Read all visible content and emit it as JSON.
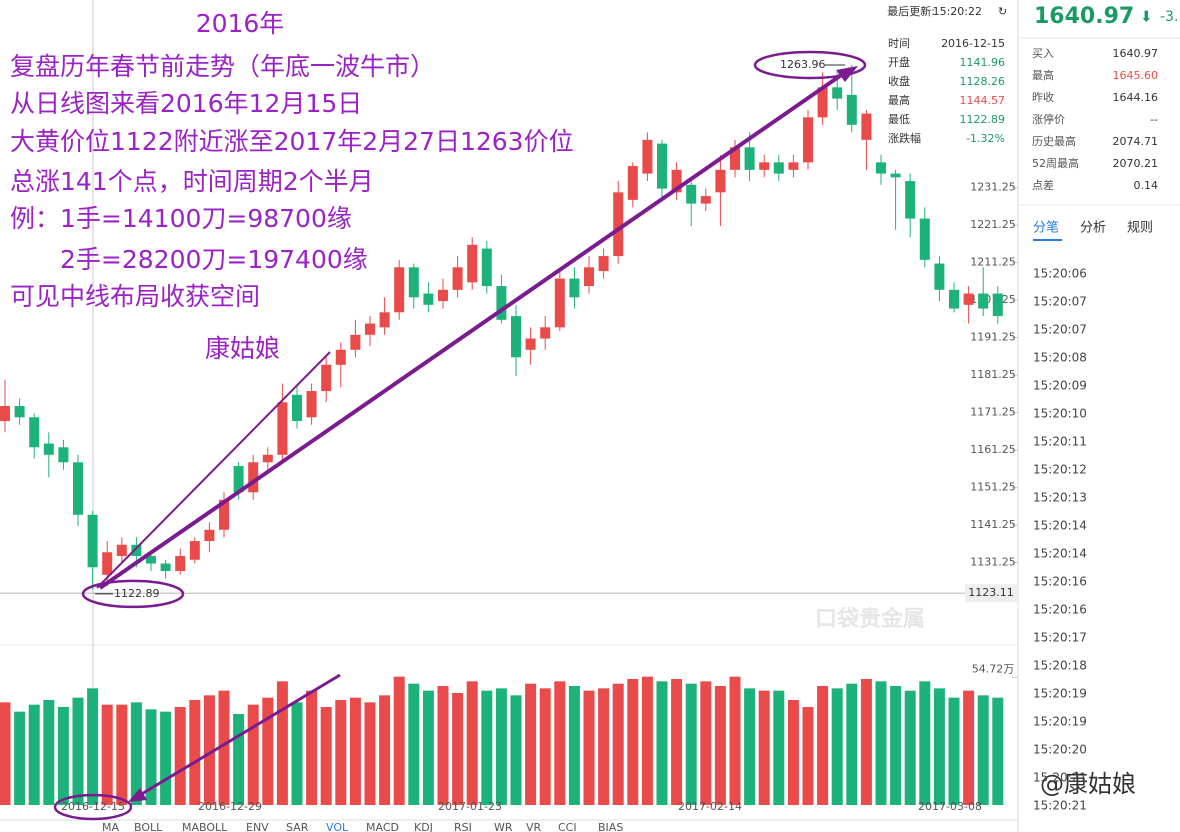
{
  "header": {
    "last_update_label": "最后更新:",
    "last_update": "15:20:22",
    "price": "1640.97",
    "change": "-3."
  },
  "annotation": {
    "lines": [
      "2016年",
      "复盘历年春节前走势（年底一波牛市）",
      "从日线图来看2016年12月15日",
      "大黄价位1122附近涨至2017年2月27日1263价位",
      "总涨141个点，时间周期2个半月",
      "例：1手=14100刀=98700缘",
      "2手=28200刀=197400缘",
      "可见中线布局收获空间",
      "康姑娘"
    ],
    "watermark": "@康姑娘",
    "logo": "口袋贵金属"
  },
  "tooltip": {
    "rows": [
      [
        "时间",
        "2016-12-15"
      ],
      [
        "开盘",
        "1141.96"
      ],
      [
        "收盘",
        "1128.26"
      ],
      [
        "最高",
        "1144.57"
      ],
      [
        "最低",
        "1122.89"
      ],
      [
        "涨跌幅",
        "-1.32%"
      ]
    ]
  },
  "quote_table": {
    "rows": [
      [
        "买入",
        "1640.97"
      ],
      [
        "最高",
        "1645.60"
      ],
      [
        "昨收",
        "1644.16"
      ],
      [
        "涨停价",
        "--"
      ],
      [
        "历史最高",
        "2074.71"
      ],
      [
        "52周最高",
        "2070.21"
      ],
      [
        "点差",
        "0.14"
      ]
    ]
  },
  "tabs": [
    "分笔",
    "分析",
    "规则"
  ],
  "ticks_list": [
    "15:20:06",
    "15:20:07",
    "15:20:07",
    "15:20:08",
    "15:20:09",
    "15:20:10",
    "15:20:11",
    "15:20:12",
    "15:20:13",
    "15:20:14",
    "15:20:14",
    "15:20:16",
    "15:20:16",
    "15:20:17",
    "15:20:18",
    "15:20:19",
    "15:20:19",
    "15:20:20",
    "15:20:21",
    "15:20:21"
  ],
  "indicators": [
    "MA",
    "BOLL",
    "MABOLL",
    "ENV",
    "SAR",
    "VOL",
    "MACD",
    "KDJ",
    "RSI",
    "WR",
    "VR",
    "CCI",
    "BIAS"
  ],
  "chart_data": {
    "type": "candlestick",
    "open": [
      1169,
      1173,
      1170,
      1163,
      1162,
      1158,
      1144,
      1128,
      1133,
      1136,
      1133,
      1131,
      1129,
      1132,
      1137,
      1140,
      1157,
      1150,
      1158,
      1160,
      1176,
      1170,
      1177,
      1184,
      1188,
      1192,
      1194,
      1198,
      1210,
      1203,
      1201,
      1204,
      1206,
      1215,
      1205,
      1197,
      1188,
      1191,
      1194,
      1207,
      1205,
      1209,
      1213,
      1228,
      1235,
      1243,
      1230,
      1232,
      1227,
      1230,
      1236,
      1242,
      1236,
      1238,
      1236,
      1238,
      1250,
      1258,
      1256,
      1244,
      1238,
      1235,
      1233,
      1223,
      1211,
      1204,
      1200,
      1203,
      1203
    ],
    "close": [
      1173,
      1170,
      1162,
      1160,
      1158,
      1144,
      1130,
      1134,
      1136,
      1133,
      1131,
      1129,
      1133,
      1137,
      1140,
      1148,
      1150,
      1158,
      1160,
      1174,
      1169,
      1177,
      1184,
      1188,
      1192,
      1195,
      1198,
      1210,
      1202,
      1200,
      1204,
      1210,
      1216,
      1205,
      1196,
      1186,
      1191,
      1194,
      1207,
      1202,
      1210,
      1213,
      1230,
      1237,
      1244,
      1231,
      1236,
      1227,
      1229,
      1236,
      1242,
      1236,
      1238,
      1235,
      1238,
      1250,
      1258,
      1255,
      1248,
      1251,
      1235,
      1234,
      1223,
      1212,
      1204,
      1199,
      1203,
      1199,
      1197
    ],
    "high": [
      1180,
      1175,
      1171,
      1166,
      1164,
      1160,
      1145,
      1137,
      1138,
      1138,
      1134,
      1132,
      1135,
      1138,
      1142,
      1150,
      1158,
      1160,
      1162,
      1179,
      1178,
      1179,
      1186,
      1190,
      1196,
      1197,
      1202,
      1212,
      1211,
      1206,
      1207,
      1213,
      1218,
      1217,
      1208,
      1200,
      1194,
      1197,
      1209,
      1210,
      1213,
      1215,
      1233,
      1238,
      1246,
      1244,
      1238,
      1234,
      1231,
      1240,
      1244,
      1246,
      1240,
      1240,
      1240,
      1252,
      1262,
      1262,
      1264,
      1252,
      1240,
      1236,
      1235,
      1226,
      1213,
      1206,
      1205,
      1210,
      1205
    ],
    "low": [
      1166,
      1168,
      1159,
      1154,
      1156,
      1141,
      1124,
      1125,
      1131,
      1130,
      1129,
      1127,
      1128,
      1131,
      1134,
      1138,
      1148,
      1148,
      1155,
      1158,
      1167,
      1168,
      1174,
      1178,
      1186,
      1189,
      1192,
      1196,
      1199,
      1198,
      1199,
      1202,
      1204,
      1203,
      1195,
      1181,
      1184,
      1188,
      1193,
      1199,
      1203,
      1207,
      1211,
      1226,
      1233,
      1228,
      1228,
      1221,
      1225,
      1221,
      1234,
      1233,
      1234,
      1233,
      1234,
      1236,
      1248,
      1252,
      1246,
      1236,
      1232,
      1220,
      1218,
      1210,
      1201,
      1198,
      1195,
      1197,
      1195
    ],
    "volume": [
      44,
      40,
      43,
      45,
      42,
      46,
      50,
      43,
      43,
      44,
      41,
      40,
      42,
      45,
      47,
      49,
      39,
      43,
      46,
      53,
      44,
      49,
      42,
      45,
      46,
      44,
      47,
      55,
      52,
      49,
      51,
      48,
      53,
      49,
      50,
      47,
      52,
      50,
      53,
      51,
      49,
      50,
      52,
      54,
      55,
      53,
      54,
      52,
      53,
      51,
      55,
      50,
      49,
      49,
      45,
      42,
      51,
      50,
      52,
      54,
      53,
      51,
      49,
      53,
      50,
      46,
      49,
      47,
      46
    ],
    "ylim": [
      1110.6,
      1281.3
    ],
    "yticks": [
      1131.25,
      1141.25,
      1151.25,
      1161.25,
      1171.25,
      1181.25,
      1191.25,
      1201.25,
      1211.25,
      1221.25,
      1231.25
    ],
    "vol_ylim": [
      0,
      60
    ],
    "vol_label": {
      "value": 54.72,
      "label": "54.72万"
    },
    "x_labels": [
      "2-06",
      "2016-12-15",
      "2016-12-29",
      "2017-01-23",
      "2017-02-14",
      "2017-03-08"
    ],
    "high_marker": 1263.96,
    "low_marker": 1122.89,
    "last_price": 1123.11,
    "up_color": "#e94b4b",
    "down_color": "#1db27a"
  }
}
